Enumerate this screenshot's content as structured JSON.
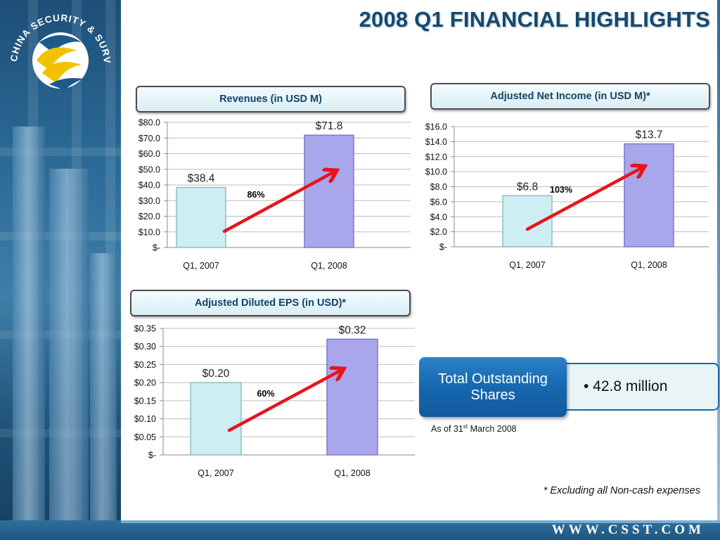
{
  "slide": {
    "title": "2008 Q1 FINANCIAL HIGHLIGHTS",
    "website": "WWW.CSST.COM",
    "logo_text": "CHINA SECURITY & SURVEILLANCE TECHNOLOGY, INC.",
    "footnote": "* Excluding all Non-cash expenses"
  },
  "colors": {
    "title": "#16496e",
    "bar_2007": "#cdeef2",
    "bar_2008": "#a9a6ec",
    "arrow": "#e8141b",
    "shares_box": "#1668b0"
  },
  "shares": {
    "label": "Total Outstanding Shares",
    "value": "• 42.8 million",
    "as_of_prefix": "As of 31",
    "as_of_sup": "st",
    "as_of_suffix": " March 2008"
  },
  "chart_data": [
    {
      "type": "bar",
      "title": "Revenues (in USD M)",
      "categories": [
        "Q1, 2007",
        "Q1, 2008"
      ],
      "values": [
        38.4,
        71.8
      ],
      "data_labels": [
        "$38.4",
        "$71.8"
      ],
      "ylim": [
        0,
        80
      ],
      "yticks": [
        0,
        10,
        20,
        30,
        40,
        50,
        60,
        70,
        80
      ],
      "ytick_labels": [
        "$-",
        "$10.0",
        "$20.0",
        "$30.0",
        "$40.0",
        "$50.0",
        "$60.0",
        "$70.0",
        "$80.0"
      ],
      "growth_label": "86%",
      "grid": true
    },
    {
      "type": "bar",
      "title": "Adjusted Net Income (in USD M)*",
      "categories": [
        "Q1, 2007",
        "Q1, 2008"
      ],
      "values": [
        6.8,
        13.7
      ],
      "data_labels": [
        "$6.8",
        "$13.7"
      ],
      "ylim": [
        0,
        16
      ],
      "yticks": [
        0,
        2,
        4,
        6,
        8,
        10,
        12,
        14,
        16
      ],
      "ytick_labels": [
        "$-",
        "$2.0",
        "$4.0",
        "$6.0",
        "$8.0",
        "$10.0",
        "$12.0",
        "$14.0",
        "$16.0"
      ],
      "growth_label": "103%",
      "grid": true
    },
    {
      "type": "bar",
      "title": "Adjusted Diluted EPS (in USD)*",
      "categories": [
        "Q1, 2007",
        "Q1, 2008"
      ],
      "values": [
        0.2,
        0.32
      ],
      "data_labels": [
        "$0.20",
        "$0.32"
      ],
      "ylim": [
        0,
        0.35
      ],
      "yticks": [
        0,
        0.05,
        0.1,
        0.15,
        0.2,
        0.25,
        0.3,
        0.35
      ],
      "ytick_labels": [
        "$-",
        "$0.05",
        "$0.10",
        "$0.15",
        "$0.20",
        "$0.25",
        "$0.30",
        "$0.35"
      ],
      "growth_label": "60%",
      "grid": true
    }
  ]
}
